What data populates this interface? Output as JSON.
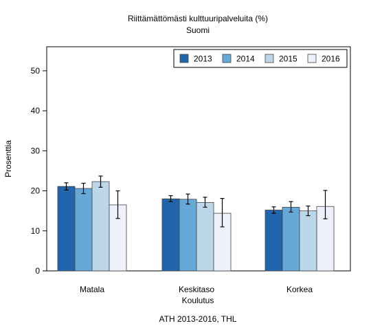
{
  "chart_data": {
    "type": "bar",
    "title": "Riittämättömästi kulttuuripalveluita (%)",
    "subtitle": "Suomi",
    "xlabel": "Koulutus",
    "ylabel": "Prosenttia",
    "caption": "ATH 2013-2016, THL",
    "ylim": [
      0,
      56
    ],
    "yticks": [
      0,
      10,
      20,
      30,
      40,
      50
    ],
    "grid": false,
    "legend_position": "top-right",
    "categories": [
      "Matala",
      "Keskitaso",
      "Korkea"
    ],
    "series": [
      {
        "name": "2013",
        "color": "#2166ac",
        "values": [
          21.1,
          18.0,
          15.2
        ],
        "ci_low": [
          20.2,
          17.3,
          14.4
        ],
        "ci_high": [
          22.0,
          18.8,
          16.0
        ]
      },
      {
        "name": "2014",
        "color": "#67a9d6",
        "values": [
          20.6,
          17.9,
          15.9
        ],
        "ci_low": [
          19.3,
          16.7,
          14.7
        ],
        "ci_high": [
          21.9,
          19.2,
          17.3
        ]
      },
      {
        "name": "2015",
        "color": "#bcd7e9",
        "values": [
          22.3,
          17.1,
          15.0
        ],
        "ci_low": [
          20.9,
          15.9,
          13.8
        ],
        "ci_high": [
          23.7,
          18.4,
          16.2
        ]
      },
      {
        "name": "2016",
        "color": "#eef1fb",
        "values": [
          16.5,
          14.4,
          16.1
        ],
        "ci_low": [
          13.1,
          11.0,
          13.0
        ],
        "ci_high": [
          20.0,
          18.1,
          20.1
        ]
      }
    ]
  }
}
